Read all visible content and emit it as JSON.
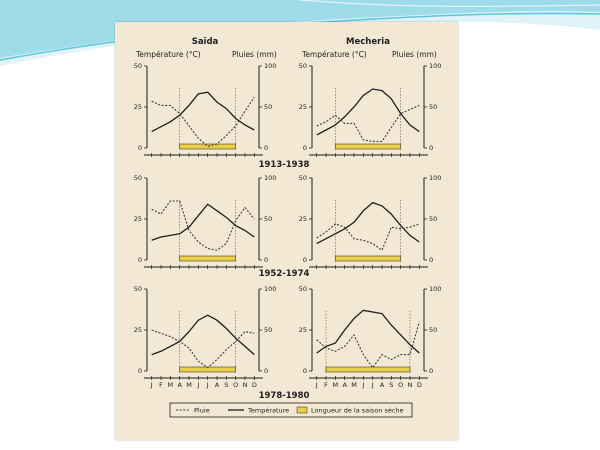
{
  "columns": [
    "Saïda",
    "Mecheria"
  ],
  "axis_headers": {
    "left": "Température (°C)",
    "right": "Pluies (mm)"
  },
  "left_ticks": [
    "0",
    "25",
    "50"
  ],
  "right_ticks": [
    "0",
    "50",
    "100"
  ],
  "months": [
    "J",
    "F",
    "M",
    "A",
    "M",
    "J",
    "J",
    "A",
    "S",
    "O",
    "N",
    "D"
  ],
  "legend": {
    "rain": "Pluie",
    "temperature": "Température",
    "dry": "Longueur de la saison sèche"
  },
  "colors": {
    "temperature": "#1e1e1e",
    "rain": "#3a3a3a",
    "dry": "#e7cf4a",
    "panel": "#f3e8d3",
    "slide_accent": "#5cc7dc"
  },
  "chart_data": [
    {
      "type": "line",
      "period": "1913-1938",
      "station": "Saïda",
      "x": [
        "J",
        "F",
        "M",
        "A",
        "M",
        "J",
        "J",
        "A",
        "S",
        "O",
        "N",
        "D"
      ],
      "xlabel": "",
      "series": [
        {
          "name": "Température",
          "axis": "left",
          "unit": "°C",
          "values": [
            10,
            13,
            16,
            20,
            26,
            33,
            34,
            28,
            24,
            18,
            14,
            11
          ]
        },
        {
          "name": "Pluie",
          "axis": "right",
          "unit": "mm",
          "values": [
            57,
            52,
            52,
            42,
            27,
            12,
            2,
            5,
            15,
            27,
            45,
            62
          ]
        }
      ],
      "ylim_left": [
        0,
        50
      ],
      "ylim_right": [
        0,
        100
      ],
      "dry_season": [
        "A",
        "O"
      ]
    },
    {
      "type": "line",
      "period": "1913-1938",
      "station": "Mecheria",
      "x": [
        "J",
        "F",
        "M",
        "A",
        "M",
        "J",
        "J",
        "A",
        "S",
        "O",
        "N",
        "D"
      ],
      "xlabel": "",
      "series": [
        {
          "name": "Température",
          "axis": "left",
          "unit": "°C",
          "values": [
            8,
            11,
            14,
            19,
            25,
            32,
            36,
            35,
            30,
            21,
            14,
            10
          ]
        },
        {
          "name": "Pluie",
          "axis": "right",
          "unit": "mm",
          "values": [
            27,
            32,
            40,
            30,
            30,
            10,
            8,
            8,
            25,
            42,
            47,
            52
          ]
        }
      ],
      "ylim_left": [
        0,
        50
      ],
      "ylim_right": [
        0,
        100
      ],
      "dry_season": [
        "M",
        "O"
      ]
    },
    {
      "type": "line",
      "period": "1952-1974",
      "station": "Saïda",
      "x": [
        "J",
        "F",
        "M",
        "A",
        "M",
        "J",
        "J",
        "A",
        "S",
        "O",
        "N",
        "D"
      ],
      "xlabel": "",
      "series": [
        {
          "name": "Température",
          "axis": "left",
          "unit": "°C",
          "values": [
            12,
            14,
            15,
            16,
            20,
            27,
            34,
            30,
            26,
            21,
            18,
            14
          ]
        },
        {
          "name": "Pluie",
          "axis": "right",
          "unit": "mm",
          "values": [
            62,
            56,
            72,
            72,
            36,
            22,
            14,
            12,
            20,
            48,
            64,
            50
          ]
        }
      ],
      "ylim_left": [
        0,
        50
      ],
      "ylim_right": [
        0,
        100
      ],
      "dry_season": [
        "A",
        "O"
      ]
    },
    {
      "type": "line",
      "period": "1952-1974",
      "station": "Mecheria",
      "x": [
        "J",
        "F",
        "M",
        "A",
        "M",
        "J",
        "J",
        "A",
        "S",
        "O",
        "N",
        "D"
      ],
      "xlabel": "",
      "series": [
        {
          "name": "Température",
          "axis": "left",
          "unit": "°C",
          "values": [
            10,
            13,
            16,
            19,
            23,
            30,
            35,
            33,
            28,
            21,
            15,
            11
          ]
        },
        {
          "name": "Pluie",
          "axis": "right",
          "unit": "mm",
          "values": [
            27,
            34,
            44,
            40,
            26,
            24,
            20,
            12,
            40,
            38,
            40,
            44
          ]
        }
      ],
      "ylim_left": [
        0,
        50
      ],
      "ylim_right": [
        0,
        100
      ],
      "dry_season": [
        "M",
        "O"
      ]
    },
    {
      "type": "line",
      "period": "1978-1980",
      "station": "Saïda",
      "x": [
        "J",
        "F",
        "M",
        "A",
        "M",
        "J",
        "J",
        "A",
        "S",
        "O",
        "N",
        "D"
      ],
      "xlabel": "",
      "series": [
        {
          "name": "Température",
          "axis": "left",
          "unit": "°C",
          "values": [
            10,
            12,
            15,
            18,
            24,
            31,
            34,
            31,
            26,
            20,
            15,
            10
          ]
        },
        {
          "name": "Pluie",
          "axis": "right",
          "unit": "mm",
          "values": [
            50,
            46,
            42,
            36,
            28,
            12,
            4,
            14,
            26,
            36,
            48,
            46
          ]
        }
      ],
      "ylim_left": [
        0,
        50
      ],
      "ylim_right": [
        0,
        100
      ],
      "dry_season": [
        "A",
        "O"
      ]
    },
    {
      "type": "line",
      "period": "1978-1980",
      "station": "Mecheria",
      "x": [
        "J",
        "F",
        "M",
        "A",
        "M",
        "J",
        "J",
        "A",
        "S",
        "O",
        "N",
        "D"
      ],
      "xlabel": "",
      "series": [
        {
          "name": "Température",
          "axis": "left",
          "unit": "°C",
          "values": [
            11,
            15,
            17,
            25,
            32,
            37,
            36,
            35,
            28,
            22,
            16,
            11
          ]
        },
        {
          "name": "Pluie",
          "axis": "right",
          "unit": "mm",
          "values": [
            38,
            28,
            24,
            30,
            44,
            20,
            4,
            20,
            14,
            20,
            20,
            60
          ]
        }
      ],
      "ylim_left": [
        0,
        50
      ],
      "ylim_right": [
        0,
        100
      ],
      "dry_season": [
        "F",
        "N"
      ]
    }
  ]
}
